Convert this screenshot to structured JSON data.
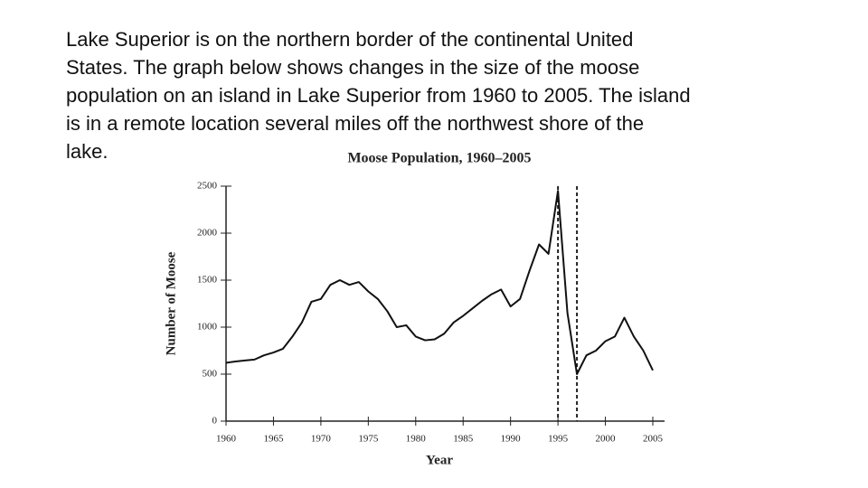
{
  "paragraph_lines": [
    "Lake Superior is on the northern border of the continental United",
    "States. The graph below shows changes in the size of the moose",
    "population on an island in Lake Superior from 1960 to 2005. The island",
    "is in a remote location several miles off the northwest shore of the",
    "lake."
  ],
  "chart_data": {
    "type": "line",
    "title": "Moose Population, 1960–2005",
    "x_label": "Year",
    "y_label": "Number of Moose",
    "x": [
      1960,
      1961,
      1962,
      1963,
      1964,
      1965,
      1966,
      1967,
      1968,
      1969,
      1970,
      1971,
      1972,
      1973,
      1974,
      1975,
      1976,
      1977,
      1978,
      1979,
      1980,
      1981,
      1982,
      1983,
      1984,
      1985,
      1986,
      1987,
      1988,
      1989,
      1990,
      1991,
      1992,
      1993,
      1994,
      1995,
      1996,
      1997,
      1998,
      1999,
      2000,
      2001,
      2002,
      2003,
      2004,
      2005
    ],
    "values": [
      620,
      635,
      645,
      655,
      700,
      730,
      770,
      900,
      1050,
      1270,
      1300,
      1450,
      1500,
      1450,
      1480,
      1380,
      1300,
      1170,
      1000,
      1020,
      900,
      860,
      870,
      930,
      1050,
      1120,
      1200,
      1280,
      1350,
      1400,
      1220,
      1300,
      1600,
      1880,
      1780,
      2450,
      1150,
      500,
      700,
      750,
      850,
      900,
      1100,
      900,
      750,
      540
    ],
    "color": "#111111",
    "xlim": [
      1960,
      2005
    ],
    "xticks": [
      1960,
      1965,
      1970,
      1975,
      1980,
      1985,
      1990,
      1995,
      2000,
      2005
    ],
    "ylim": [
      0,
      2500
    ],
    "yticks": [
      0,
      500,
      1000,
      1500,
      2000,
      2500
    ],
    "reference_lines_x": [
      1995,
      1997
    ]
  }
}
